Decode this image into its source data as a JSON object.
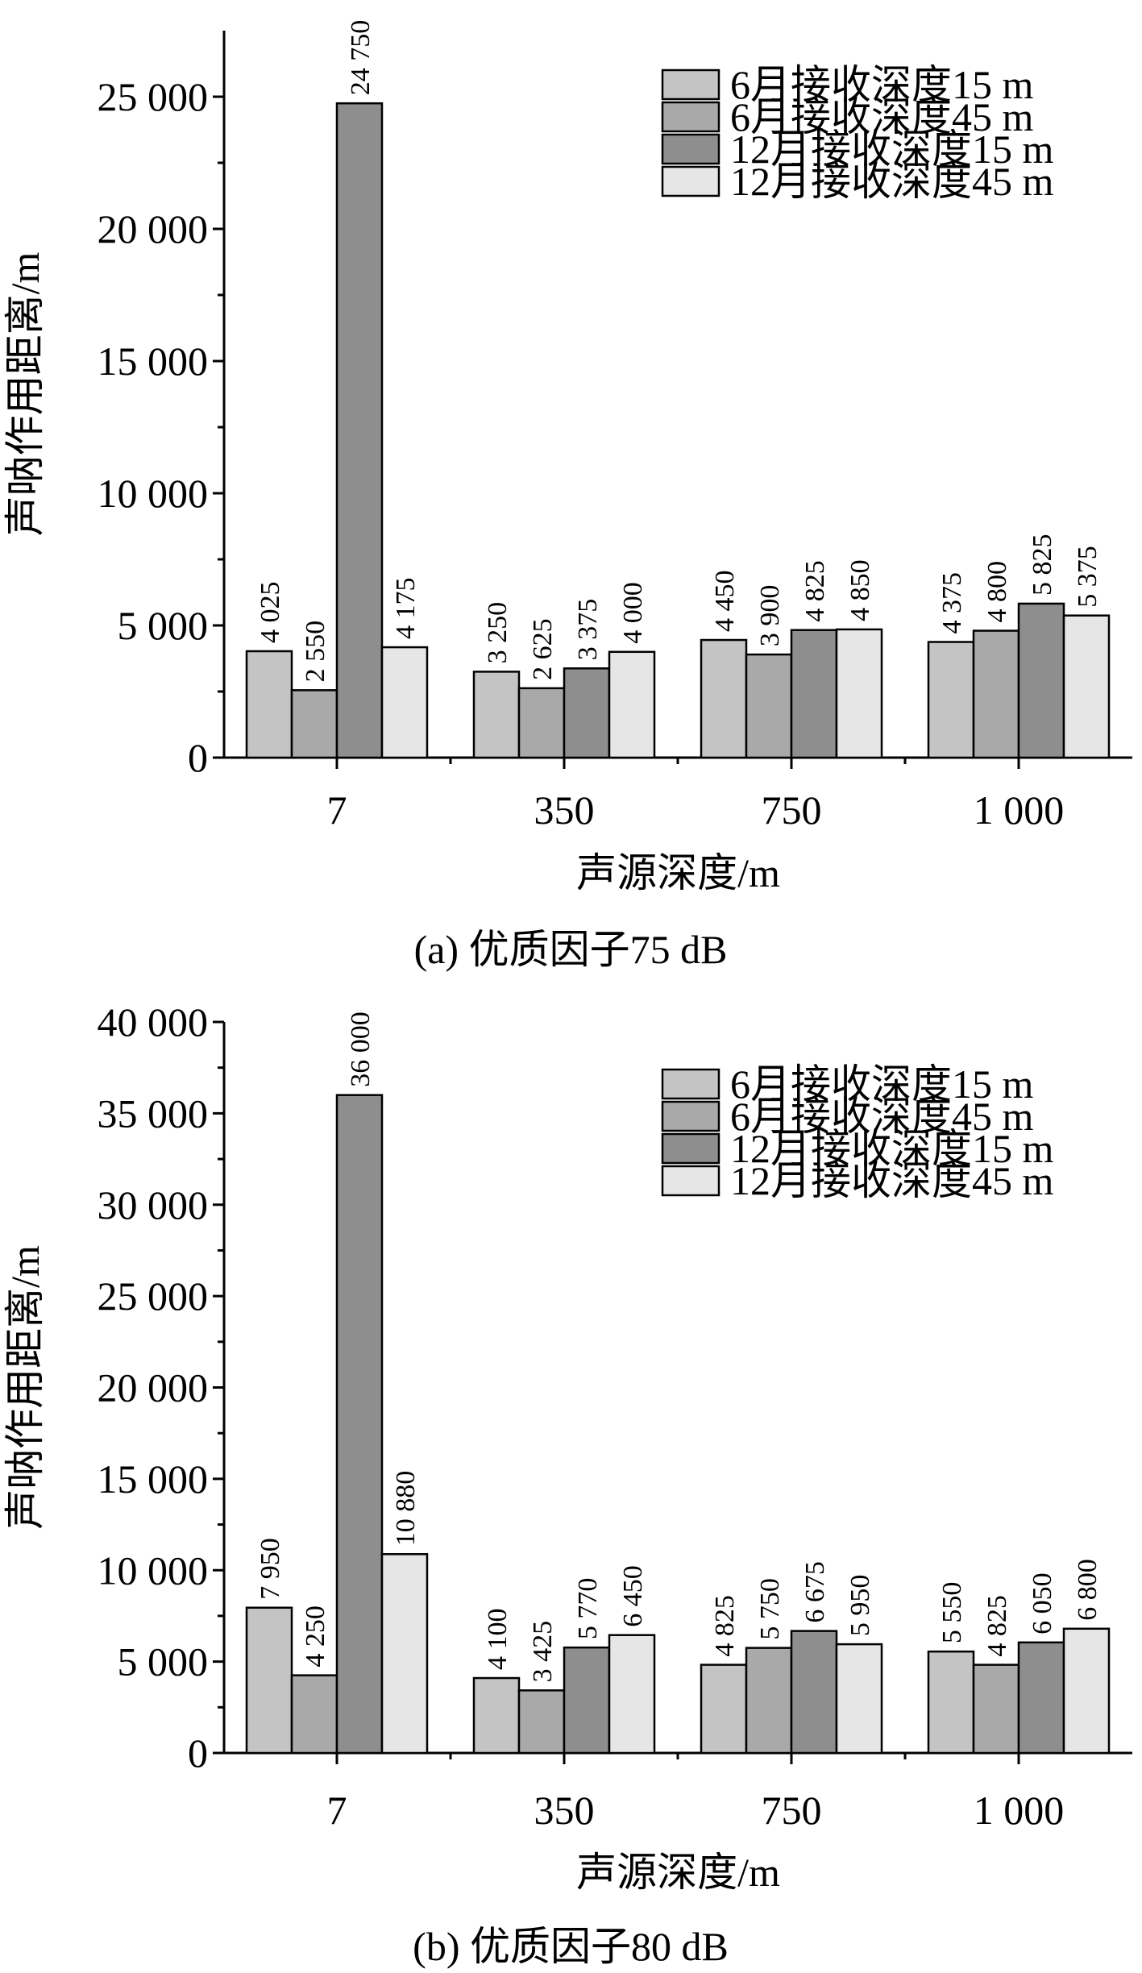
{
  "chart_data": [
    {
      "type": "bar",
      "caption": "(a) 优质因子75 dB",
      "xlabel": "声源深度/m",
      "ylabel": "声呐作用距离/m",
      "categories": [
        "7",
        "350",
        "750",
        "1 000"
      ],
      "ylim": [
        0,
        27500
      ],
      "yticks": [
        0,
        5000,
        10000,
        15000,
        20000,
        25000
      ],
      "ytick_labels": [
        "0",
        "5 000",
        "10 000",
        "15 000",
        "20 000",
        "25 000"
      ],
      "legend_position": "top-right",
      "series": [
        {
          "name": "6月接收深度15 m",
          "color": "#c4c4c4",
          "values": [
            4025,
            3250,
            4450,
            4375
          ],
          "labels": [
            "4 025",
            "3 250",
            "4 450",
            "4 375"
          ]
        },
        {
          "name": "6月接收深度45 m",
          "color": "#a9a9a9",
          "values": [
            2550,
            2625,
            3900,
            4800
          ],
          "labels": [
            "2 550",
            "2 625",
            "3 900",
            "4 800"
          ]
        },
        {
          "name": "12月接收深度15 m",
          "color": "#8e8e8e",
          "values": [
            24750,
            3375,
            4825,
            5825
          ],
          "labels": [
            "24 750",
            "3 375",
            "4 825",
            "5 825"
          ]
        },
        {
          "name": "12月接收深度45 m",
          "color": "#e6e6e6",
          "values": [
            4175,
            4000,
            4850,
            5375
          ],
          "labels": [
            "4 175",
            "4 000",
            "4 850",
            "5 375"
          ]
        }
      ]
    },
    {
      "type": "bar",
      "caption": "(b) 优质因子80 dB",
      "xlabel": "声源深度/m",
      "ylabel": "声呐作用距离/m",
      "categories": [
        "7",
        "350",
        "750",
        "1 000"
      ],
      "ylim": [
        0,
        40000
      ],
      "yticks": [
        0,
        5000,
        10000,
        15000,
        20000,
        25000,
        30000,
        35000,
        40000
      ],
      "ytick_labels": [
        "0",
        "5 000",
        "10 000",
        "15 000",
        "20 000",
        "25 000",
        "30 000",
        "35 000",
        "40 000"
      ],
      "legend_position": "top-right",
      "series": [
        {
          "name": "6月接收深度15 m",
          "color": "#c4c4c4",
          "values": [
            7950,
            4100,
            4825,
            5550
          ],
          "labels": [
            "7 950",
            "4 100",
            "4 825",
            "5 550"
          ]
        },
        {
          "name": "6月接收深度45 m",
          "color": "#a9a9a9",
          "values": [
            4250,
            3425,
            5750,
            4825
          ],
          "labels": [
            "4 250",
            "3 425",
            "5 750",
            "4 825"
          ]
        },
        {
          "name": "12月接收深度15 m",
          "color": "#8e8e8e",
          "values": [
            36000,
            5770,
            6675,
            6050
          ],
          "labels": [
            "36 000",
            "5 770",
            "6 675",
            "6 050"
          ]
        },
        {
          "name": "12月接收深度45 m",
          "color": "#e6e6e6",
          "values": [
            10880,
            6450,
            5950,
            6800
          ],
          "labels": [
            "10 880",
            "6 450",
            "5 950",
            "6 800"
          ]
        }
      ]
    }
  ]
}
